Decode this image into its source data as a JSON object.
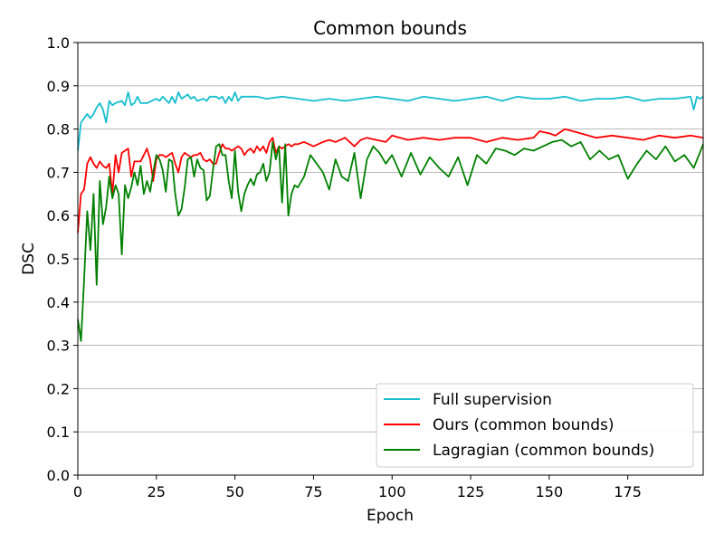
{
  "chart_data": {
    "type": "line",
    "title": "Common bounds",
    "xlabel": "Epoch",
    "ylabel": "DSC",
    "xlim": [
      0,
      199
    ],
    "ylim": [
      0.0,
      1.0
    ],
    "xticks": [
      0,
      25,
      50,
      75,
      100,
      125,
      150,
      175
    ],
    "yticks": [
      0.0,
      0.1,
      0.2,
      0.3,
      0.4,
      0.5,
      0.6,
      0.7,
      0.8,
      0.9,
      1.0
    ],
    "ytick_labels": [
      "0.0",
      "0.1",
      "0.2",
      "0.3",
      "0.4",
      "0.5",
      "0.6",
      "0.7",
      "0.8",
      "0.9",
      "1.0"
    ],
    "grid": "horizontal",
    "legend": "lower-right",
    "series": [
      {
        "name": "Full supervision",
        "color": "#17becf",
        "x": [
          0,
          1,
          2,
          3,
          4,
          5,
          6,
          7,
          8,
          9,
          10,
          11,
          12,
          14,
          15,
          16,
          17,
          18,
          19,
          20,
          22,
          25,
          26,
          27,
          29,
          30,
          31,
          32,
          33,
          34,
          35,
          36,
          37,
          38,
          40,
          41,
          42,
          44,
          45,
          46,
          47,
          48,
          49,
          50,
          51,
          52,
          55,
          57,
          60,
          65,
          70,
          75,
          80,
          85,
          90,
          95,
          100,
          105,
          110,
          115,
          120,
          125,
          130,
          135,
          140,
          145,
          150,
          155,
          160,
          165,
          170,
          175,
          180,
          185,
          190,
          195,
          196,
          197,
          198,
          199
        ],
        "y": [
          0.75,
          0.815,
          0.825,
          0.835,
          0.825,
          0.835,
          0.85,
          0.86,
          0.845,
          0.815,
          0.865,
          0.855,
          0.86,
          0.865,
          0.855,
          0.885,
          0.855,
          0.86,
          0.875,
          0.86,
          0.86,
          0.87,
          0.865,
          0.875,
          0.86,
          0.875,
          0.86,
          0.885,
          0.87,
          0.875,
          0.88,
          0.87,
          0.875,
          0.865,
          0.87,
          0.865,
          0.875,
          0.875,
          0.87,
          0.875,
          0.86,
          0.875,
          0.865,
          0.885,
          0.865,
          0.875,
          0.875,
          0.875,
          0.87,
          0.875,
          0.87,
          0.865,
          0.87,
          0.865,
          0.87,
          0.875,
          0.87,
          0.865,
          0.875,
          0.87,
          0.865,
          0.87,
          0.875,
          0.865,
          0.875,
          0.87,
          0.87,
          0.875,
          0.865,
          0.87,
          0.87,
          0.875,
          0.865,
          0.87,
          0.87,
          0.875,
          0.845,
          0.875,
          0.87,
          0.875
        ]
      },
      {
        "name": "Ours (common bounds)",
        "color": "#ff0000",
        "x": [
          0,
          1,
          2,
          3,
          4,
          5,
          6,
          7,
          8,
          9,
          10,
          11,
          12,
          13,
          14,
          15,
          16,
          17,
          18,
          19,
          20,
          21,
          22,
          23,
          24,
          25,
          26,
          27,
          28,
          29,
          30,
          31,
          32,
          33,
          34,
          35,
          36,
          37,
          38,
          39,
          40,
          41,
          42,
          43,
          44,
          45,
          46,
          47,
          48,
          49,
          50,
          51,
          52,
          53,
          54,
          55,
          56,
          57,
          58,
          59,
          60,
          61,
          62,
          63,
          64,
          65,
          66,
          67,
          68,
          69,
          70,
          72,
          75,
          78,
          80,
          82,
          85,
          88,
          90,
          92,
          95,
          98,
          100,
          105,
          110,
          115,
          120,
          125,
          130,
          135,
          140,
          145,
          147,
          150,
          152,
          155,
          160,
          165,
          170,
          175,
          180,
          185,
          190,
          195,
          199
        ],
        "y": [
          0.56,
          0.65,
          0.66,
          0.72,
          0.735,
          0.72,
          0.71,
          0.725,
          0.715,
          0.71,
          0.72,
          0.65,
          0.74,
          0.7,
          0.745,
          0.75,
          0.755,
          0.69,
          0.725,
          0.725,
          0.725,
          0.74,
          0.755,
          0.73,
          0.68,
          0.73,
          0.74,
          0.74,
          0.735,
          0.74,
          0.745,
          0.72,
          0.7,
          0.735,
          0.745,
          0.74,
          0.735,
          0.74,
          0.74,
          0.745,
          0.73,
          0.725,
          0.73,
          0.72,
          0.72,
          0.745,
          0.765,
          0.755,
          0.755,
          0.75,
          0.755,
          0.76,
          0.755,
          0.74,
          0.75,
          0.755,
          0.745,
          0.76,
          0.75,
          0.76,
          0.745,
          0.77,
          0.78,
          0.745,
          0.76,
          0.755,
          0.76,
          0.765,
          0.76,
          0.765,
          0.765,
          0.77,
          0.76,
          0.77,
          0.775,
          0.77,
          0.78,
          0.76,
          0.775,
          0.78,
          0.775,
          0.77,
          0.785,
          0.775,
          0.78,
          0.775,
          0.78,
          0.78,
          0.77,
          0.78,
          0.775,
          0.78,
          0.795,
          0.79,
          0.785,
          0.8,
          0.79,
          0.78,
          0.785,
          0.78,
          0.775,
          0.785,
          0.78,
          0.785,
          0.78
        ]
      },
      {
        "name": "Lagragian (common bounds)",
        "color": "#008000",
        "x": [
          0,
          1,
          2,
          3,
          4,
          5,
          6,
          7,
          8,
          9,
          10,
          11,
          12,
          13,
          14,
          15,
          16,
          17,
          18,
          19,
          20,
          21,
          22,
          23,
          24,
          25,
          26,
          27,
          28,
          29,
          30,
          31,
          32,
          33,
          34,
          35,
          36,
          37,
          38,
          39,
          40,
          41,
          42,
          43,
          44,
          45,
          46,
          47,
          48,
          49,
          50,
          51,
          52,
          53,
          54,
          55,
          56,
          57,
          58,
          59,
          60,
          61,
          62,
          63,
          64,
          65,
          66,
          67,
          68,
          69,
          70,
          72,
          74,
          76,
          78,
          80,
          82,
          84,
          86,
          88,
          90,
          92,
          94,
          96,
          98,
          100,
          103,
          106,
          109,
          112,
          115,
          118,
          121,
          124,
          127,
          130,
          133,
          136,
          139,
          142,
          145,
          148,
          151,
          154,
          157,
          160,
          163,
          166,
          169,
          172,
          175,
          178,
          181,
          184,
          187,
          190,
          193,
          196,
          199
        ],
        "y": [
          0.36,
          0.31,
          0.45,
          0.61,
          0.52,
          0.65,
          0.44,
          0.68,
          0.58,
          0.62,
          0.69,
          0.64,
          0.67,
          0.65,
          0.51,
          0.67,
          0.64,
          0.665,
          0.7,
          0.67,
          0.715,
          0.65,
          0.68,
          0.655,
          0.7,
          0.74,
          0.73,
          0.705,
          0.655,
          0.73,
          0.725,
          0.65,
          0.6,
          0.615,
          0.665,
          0.73,
          0.735,
          0.69,
          0.73,
          0.71,
          0.705,
          0.635,
          0.645,
          0.705,
          0.76,
          0.765,
          0.74,
          0.74,
          0.68,
          0.64,
          0.75,
          0.655,
          0.61,
          0.65,
          0.67,
          0.685,
          0.67,
          0.695,
          0.7,
          0.72,
          0.68,
          0.7,
          0.77,
          0.73,
          0.76,
          0.63,
          0.765,
          0.6,
          0.65,
          0.67,
          0.665,
          0.69,
          0.74,
          0.72,
          0.7,
          0.66,
          0.73,
          0.69,
          0.68,
          0.745,
          0.64,
          0.73,
          0.76,
          0.745,
          0.72,
          0.74,
          0.69,
          0.745,
          0.695,
          0.735,
          0.71,
          0.69,
          0.735,
          0.67,
          0.74,
          0.72,
          0.755,
          0.75,
          0.74,
          0.755,
          0.75,
          0.76,
          0.77,
          0.775,
          0.76,
          0.77,
          0.73,
          0.75,
          0.73,
          0.74,
          0.685,
          0.72,
          0.75,
          0.73,
          0.76,
          0.725,
          0.74,
          0.71,
          0.765
        ]
      }
    ]
  }
}
